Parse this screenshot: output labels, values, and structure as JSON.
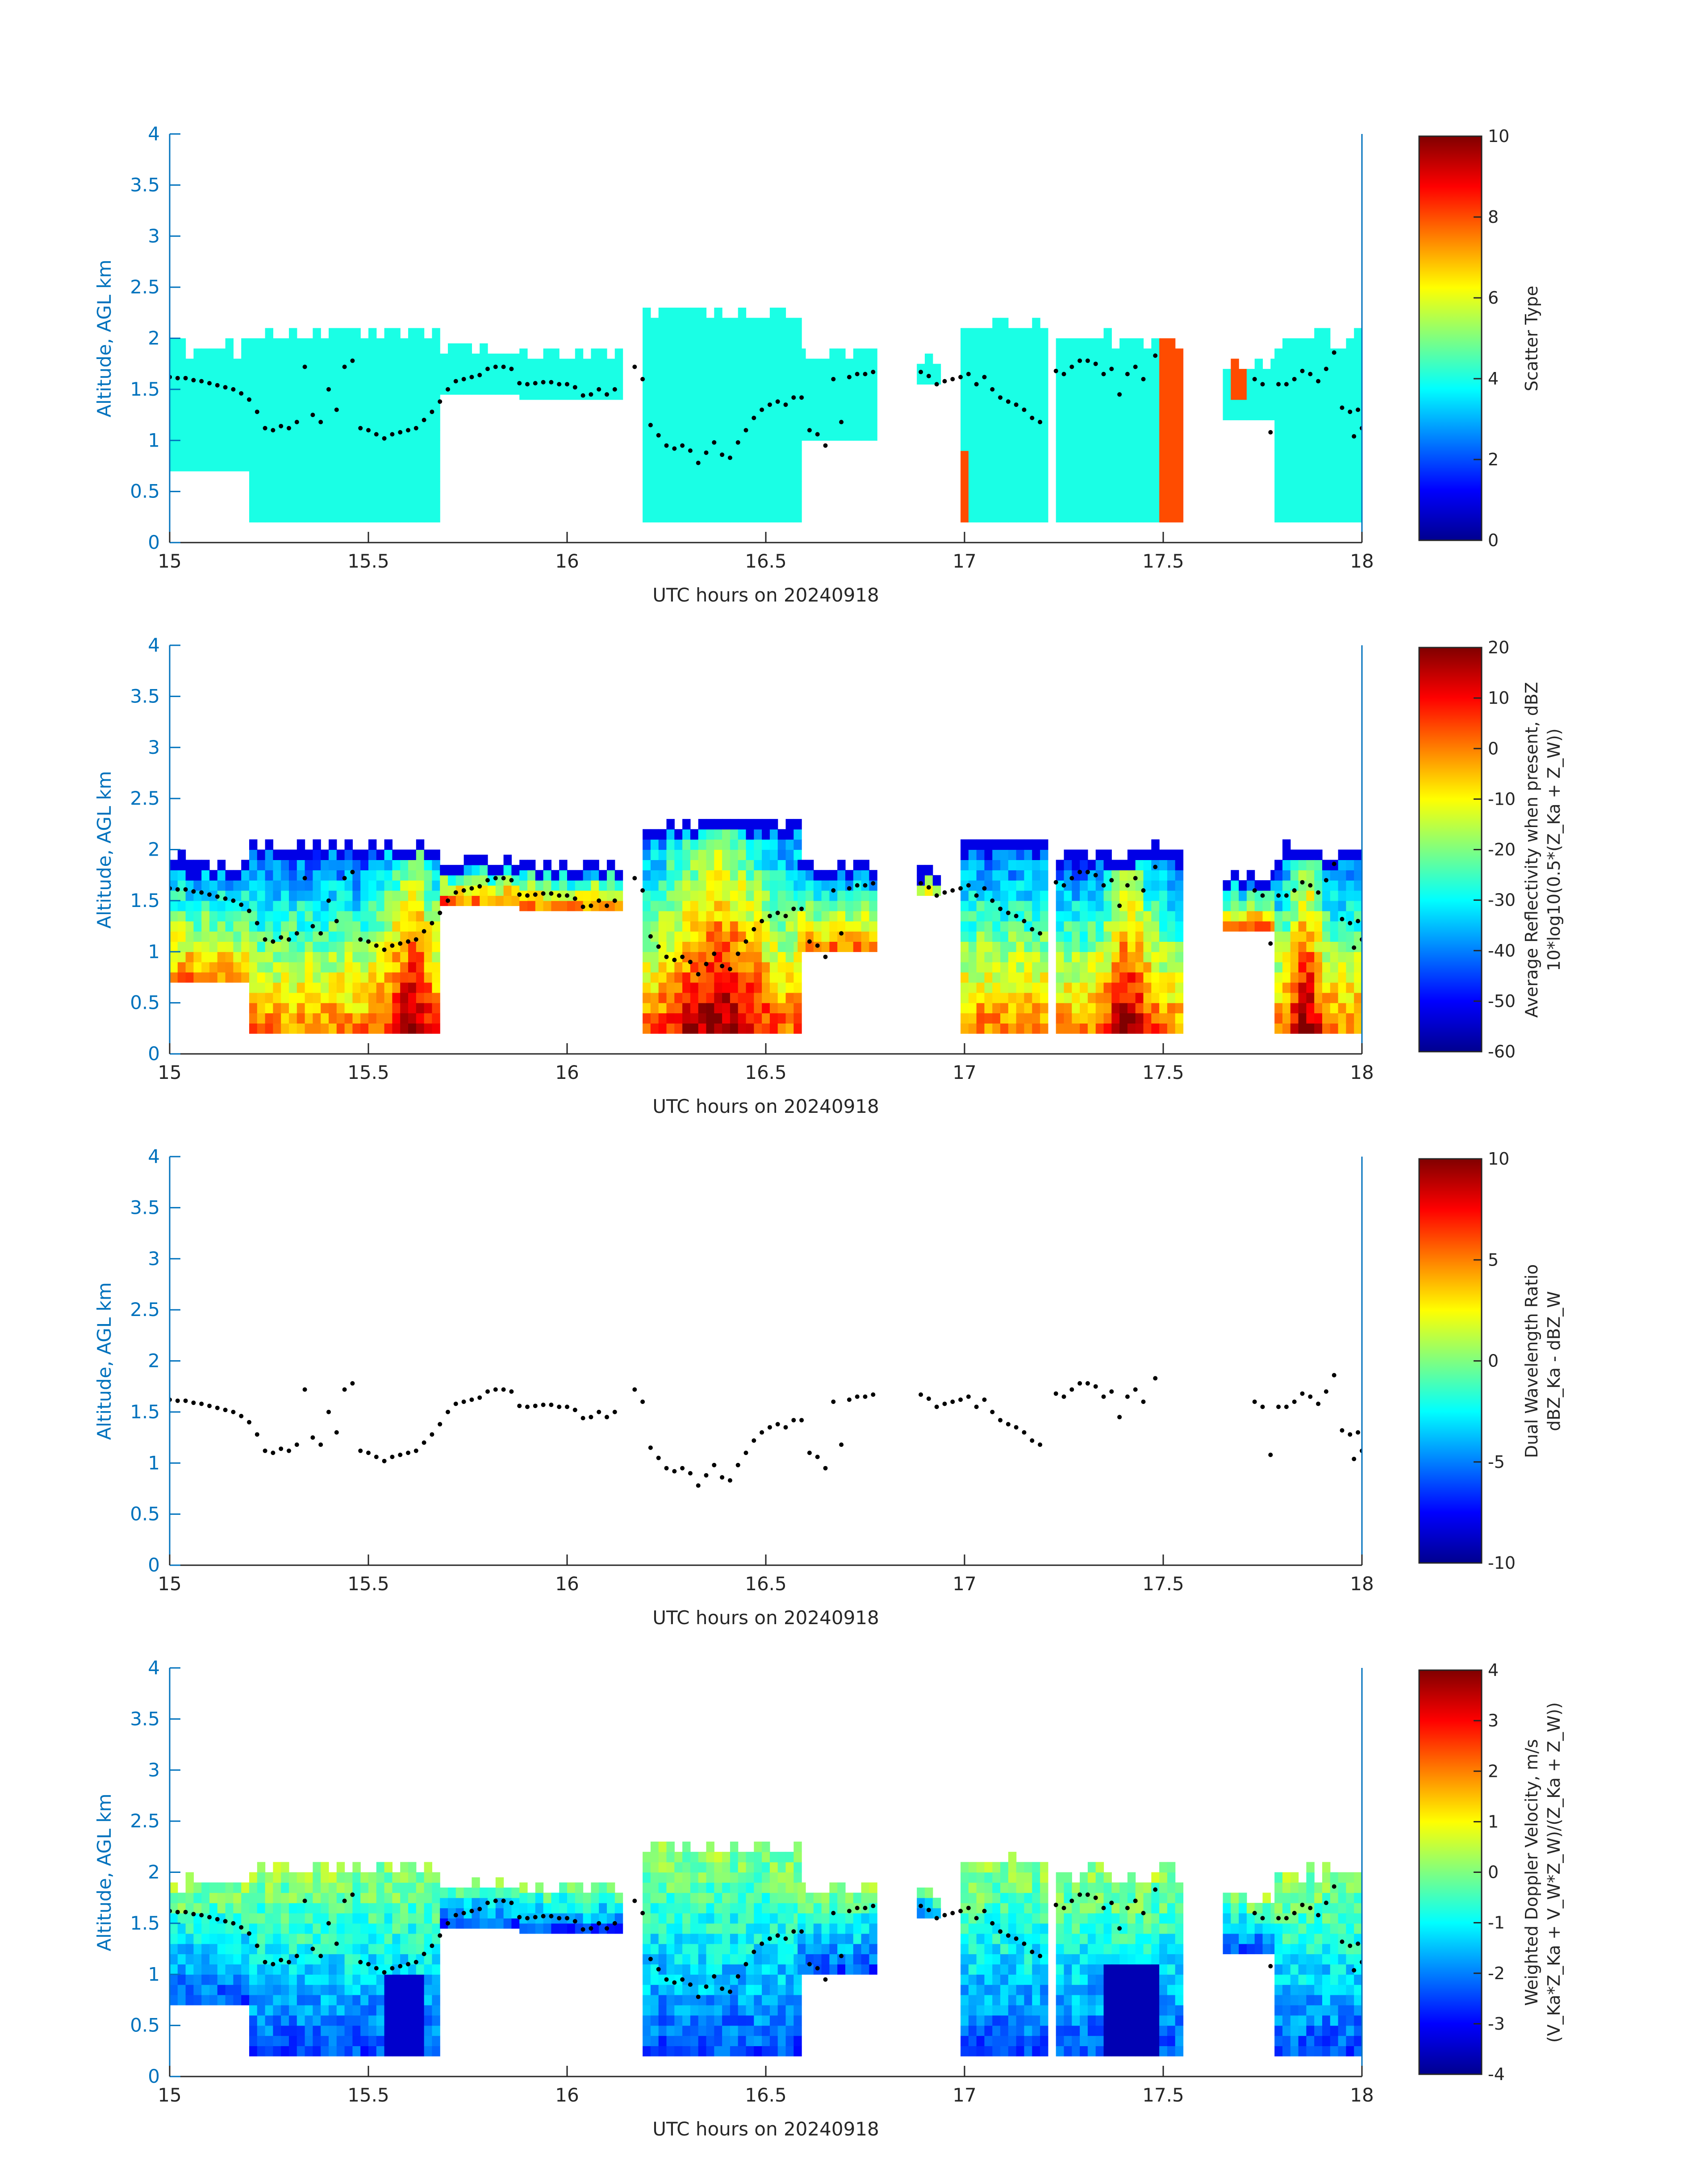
{
  "figure": {
    "date": "20240918"
  },
  "chart_data": [
    {
      "type": "heatmap",
      "panel": "scatter-type",
      "xlabel": "UTC hours on 20240918",
      "ylabel": "Altitude, AGL km",
      "xlim": [
        15,
        18
      ],
      "ylim": [
        0,
        4
      ],
      "xticks": [
        "15",
        "15.5",
        "16",
        "16.5",
        "17",
        "17.5",
        "18"
      ],
      "yticks": [
        "0",
        "0.5",
        "1",
        "1.5",
        "2",
        "2.5",
        "3",
        "3.5",
        "4"
      ],
      "colorbar": {
        "label": [
          "Scatter Type"
        ],
        "range": [
          0,
          10
        ],
        "ticks": [
          "0",
          "2",
          "4",
          "6",
          "8",
          "10"
        ]
      }
    },
    {
      "type": "heatmap",
      "panel": "reflectivity",
      "xlabel": "UTC hours on 20240918",
      "ylabel": "Altitude, AGL km",
      "xlim": [
        15,
        18
      ],
      "ylim": [
        0,
        4
      ],
      "xticks": [
        "15",
        "15.5",
        "16",
        "16.5",
        "17",
        "17.5",
        "18"
      ],
      "yticks": [
        "0",
        "0.5",
        "1",
        "1.5",
        "2",
        "2.5",
        "3",
        "3.5",
        "4"
      ],
      "colorbar": {
        "label": [
          "Average Reflectivity when present, dBZ",
          "10*log10(0.5*(Z_Ka + Z_W))"
        ],
        "range": [
          -60,
          20
        ],
        "ticks": [
          "-60",
          "-50",
          "-40",
          "-30",
          "-20",
          "-10",
          "0",
          "10",
          "20"
        ]
      }
    },
    {
      "type": "heatmap",
      "panel": "dwr",
      "xlabel": "UTC hours on 20240918",
      "ylabel": "Altitude, AGL km",
      "xlim": [
        15,
        18
      ],
      "ylim": [
        0,
        4
      ],
      "xticks": [
        "15",
        "15.5",
        "16",
        "16.5",
        "17",
        "17.5",
        "18"
      ],
      "yticks": [
        "0",
        "0.5",
        "1",
        "1.5",
        "2",
        "2.5",
        "3",
        "3.5",
        "4"
      ],
      "colorbar": {
        "label": [
          "Dual Wavelength Ratio",
          "dBZ_Ka - dBZ_W"
        ],
        "range": [
          -10,
          10
        ],
        "ticks": [
          "-10",
          "-5",
          "0",
          "5",
          "10"
        ]
      }
    },
    {
      "type": "heatmap",
      "panel": "doppler-velocity",
      "xlabel": "UTC hours on 20240918",
      "ylabel": "Altitude, AGL km",
      "xlim": [
        15,
        18
      ],
      "ylim": [
        0,
        4
      ],
      "xticks": [
        "15",
        "15.5",
        "16",
        "16.5",
        "17",
        "17.5",
        "18"
      ],
      "yticks": [
        "0",
        "0.5",
        "1",
        "1.5",
        "2",
        "2.5",
        "3",
        "3.5",
        "4"
      ],
      "colorbar": {
        "label": [
          "Weighted Doppler Velocity, m/s",
          "(V_Ka*Z_Ka + V_W*Z_W)/(Z_Ka + Z_W))"
        ],
        "range": [
          -4,
          4
        ],
        "ticks": [
          "-4",
          "-3",
          "-2",
          "-1",
          "0",
          "1",
          "2",
          "3",
          "4"
        ]
      }
    }
  ],
  "cloud_segments": [
    {
      "t0": 15.0,
      "t1": 15.2,
      "base": 0.7,
      "top": 1.85
    },
    {
      "t0": 15.2,
      "t1": 15.68,
      "base": 0.2,
      "top": 2.0
    },
    {
      "t0": 15.68,
      "t1": 15.88,
      "base": 1.45,
      "top": 1.85
    },
    {
      "t0": 15.88,
      "t1": 16.13,
      "base": 1.4,
      "top": 1.8
    },
    {
      "t0": 16.19,
      "t1": 16.58,
      "base": 0.2,
      "top": 2.2
    },
    {
      "t0": 16.58,
      "t1": 16.78,
      "base": 1.0,
      "top": 1.8
    },
    {
      "t0": 16.88,
      "t1": 16.93,
      "base": 1.55,
      "top": 1.75
    },
    {
      "t0": 16.99,
      "t1": 17.2,
      "base": 0.2,
      "top": 2.05
    },
    {
      "t0": 17.23,
      "t1": 17.55,
      "base": 0.2,
      "top": 1.95
    },
    {
      "t0": 17.65,
      "t1": 17.78,
      "base": 1.2,
      "top": 1.7
    },
    {
      "t0": 17.78,
      "t1": 18.0,
      "base": 0.2,
      "top": 1.95
    }
  ],
  "overlay_dots": [
    [
      15.0,
      1.62
    ],
    [
      15.02,
      1.61
    ],
    [
      15.04,
      1.61
    ],
    [
      15.06,
      1.59
    ],
    [
      15.08,
      1.58
    ],
    [
      15.1,
      1.56
    ],
    [
      15.12,
      1.54
    ],
    [
      15.14,
      1.52
    ],
    [
      15.16,
      1.5
    ],
    [
      15.18,
      1.46
    ],
    [
      15.2,
      1.4
    ],
    [
      15.22,
      1.28
    ],
    [
      15.24,
      1.12
    ],
    [
      15.26,
      1.1
    ],
    [
      15.28,
      1.14
    ],
    [
      15.3,
      1.12
    ],
    [
      15.32,
      1.18
    ],
    [
      15.34,
      1.72
    ],
    [
      15.36,
      1.25
    ],
    [
      15.38,
      1.18
    ],
    [
      15.4,
      1.5
    ],
    [
      15.42,
      1.3
    ],
    [
      15.44,
      1.72
    ],
    [
      15.46,
      1.78
    ],
    [
      15.48,
      1.12
    ],
    [
      15.5,
      1.1
    ],
    [
      15.52,
      1.06
    ],
    [
      15.54,
      1.02
    ],
    [
      15.56,
      1.06
    ],
    [
      15.58,
      1.08
    ],
    [
      15.6,
      1.1
    ],
    [
      15.62,
      1.12
    ],
    [
      15.64,
      1.2
    ],
    [
      15.66,
      1.28
    ],
    [
      15.68,
      1.38
    ],
    [
      15.7,
      1.5
    ],
    [
      15.72,
      1.58
    ],
    [
      15.74,
      1.6
    ],
    [
      15.76,
      1.62
    ],
    [
      15.78,
      1.64
    ],
    [
      15.8,
      1.7
    ],
    [
      15.82,
      1.72
    ],
    [
      15.84,
      1.72
    ],
    [
      15.86,
      1.7
    ],
    [
      15.88,
      1.56
    ],
    [
      15.9,
      1.55
    ],
    [
      15.92,
      1.56
    ],
    [
      15.94,
      1.57
    ],
    [
      15.96,
      1.57
    ],
    [
      15.98,
      1.55
    ],
    [
      16.0,
      1.55
    ],
    [
      16.02,
      1.52
    ],
    [
      16.04,
      1.44
    ],
    [
      16.06,
      1.45
    ],
    [
      16.08,
      1.5
    ],
    [
      16.1,
      1.45
    ],
    [
      16.12,
      1.5
    ],
    [
      16.17,
      1.72
    ],
    [
      16.19,
      1.6
    ],
    [
      16.21,
      1.15
    ],
    [
      16.23,
      1.05
    ],
    [
      16.25,
      0.95
    ],
    [
      16.27,
      0.92
    ],
    [
      16.29,
      0.95
    ],
    [
      16.31,
      0.9
    ],
    [
      16.33,
      0.78
    ],
    [
      16.35,
      0.88
    ],
    [
      16.37,
      0.98
    ],
    [
      16.39,
      0.86
    ],
    [
      16.41,
      0.83
    ],
    [
      16.43,
      0.98
    ],
    [
      16.45,
      1.1
    ],
    [
      16.47,
      1.22
    ],
    [
      16.49,
      1.3
    ],
    [
      16.51,
      1.35
    ],
    [
      16.53,
      1.38
    ],
    [
      16.55,
      1.35
    ],
    [
      16.57,
      1.42
    ],
    [
      16.59,
      1.42
    ],
    [
      16.61,
      1.1
    ],
    [
      16.63,
      1.06
    ],
    [
      16.65,
      0.95
    ],
    [
      16.67,
      1.6
    ],
    [
      16.69,
      1.18
    ],
    [
      16.71,
      1.62
    ],
    [
      16.73,
      1.65
    ],
    [
      16.75,
      1.65
    ],
    [
      16.77,
      1.67
    ],
    [
      16.89,
      1.67
    ],
    [
      16.91,
      1.63
    ],
    [
      16.93,
      1.55
    ],
    [
      16.95,
      1.58
    ],
    [
      16.97,
      1.6
    ],
    [
      16.99,
      1.62
    ],
    [
      17.01,
      1.65
    ],
    [
      17.03,
      1.55
    ],
    [
      17.05,
      1.62
    ],
    [
      17.07,
      1.5
    ],
    [
      17.09,
      1.42
    ],
    [
      17.11,
      1.38
    ],
    [
      17.13,
      1.35
    ],
    [
      17.15,
      1.3
    ],
    [
      17.17,
      1.22
    ],
    [
      17.19,
      1.18
    ],
    [
      17.23,
      1.68
    ],
    [
      17.25,
      1.65
    ],
    [
      17.27,
      1.72
    ],
    [
      17.29,
      1.78
    ],
    [
      17.31,
      1.78
    ],
    [
      17.33,
      1.75
    ],
    [
      17.35,
      1.65
    ],
    [
      17.37,
      1.7
    ],
    [
      17.39,
      1.45
    ],
    [
      17.41,
      1.65
    ],
    [
      17.43,
      1.72
    ],
    [
      17.45,
      1.6
    ],
    [
      17.48,
      1.83
    ],
    [
      17.73,
      1.6
    ],
    [
      17.75,
      1.55
    ],
    [
      17.77,
      1.08
    ],
    [
      17.79,
      1.55
    ],
    [
      17.81,
      1.55
    ],
    [
      17.83,
      1.6
    ],
    [
      17.85,
      1.68
    ],
    [
      17.87,
      1.65
    ],
    [
      17.89,
      1.58
    ],
    [
      17.91,
      1.7
    ],
    [
      17.93,
      1.86
    ],
    [
      17.95,
      1.32
    ],
    [
      17.97,
      1.28
    ],
    [
      17.98,
      1.04
    ],
    [
      17.99,
      1.3
    ],
    [
      18.0,
      1.12
    ]
  ]
}
